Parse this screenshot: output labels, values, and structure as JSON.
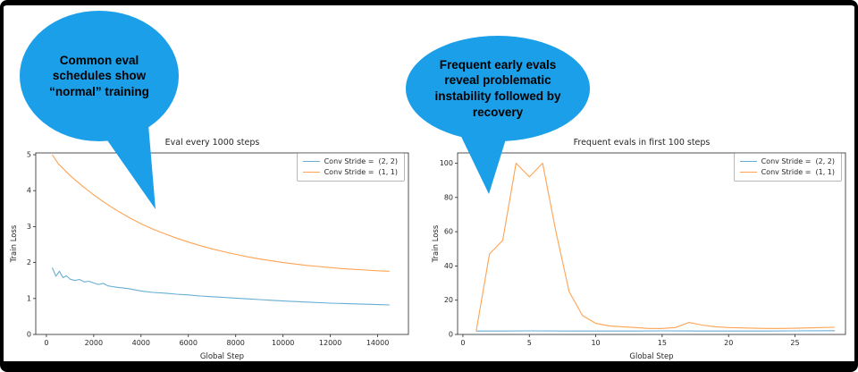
{
  "colors": {
    "bubble": "#1b9fe9",
    "series_blue": "#67aed5",
    "series_orange": "#ffa352"
  },
  "callouts": [
    {
      "text": "Common eval schedules show “normal” training"
    },
    {
      "text": "Frequent early evals reveal problematic instability followed by recovery"
    }
  ],
  "chart_data": [
    {
      "type": "line",
      "title": "Eval every 1000 steps",
      "xlabel": "Global Step",
      "ylabel": "Train Loss",
      "xlim": [
        -450,
        15300
      ],
      "ylim": [
        0,
        5.05
      ],
      "xticks": [
        0,
        2000,
        4000,
        6000,
        8000,
        10000,
        12000,
        14000
      ],
      "yticks": [
        0,
        1,
        2,
        3,
        4,
        5
      ],
      "grid": false,
      "legend_position": "upper right",
      "series": [
        {
          "name": "Conv Stride =  (2, 2)",
          "color": "#67aed5",
          "x": [
            250,
            400,
            550,
            700,
            850,
            1000,
            1200,
            1400,
            1600,
            1800,
            2000,
            2200,
            2400,
            2600,
            2800,
            3000,
            3250,
            3500,
            3750,
            4000,
            4500,
            5000,
            5500,
            6000,
            6500,
            7000,
            7500,
            8000,
            8500,
            9000,
            9500,
            10000,
            11000,
            12000,
            13000,
            14000,
            14500
          ],
          "y": [
            1.86,
            1.62,
            1.76,
            1.58,
            1.63,
            1.54,
            1.5,
            1.53,
            1.46,
            1.48,
            1.43,
            1.39,
            1.42,
            1.35,
            1.33,
            1.31,
            1.29,
            1.27,
            1.24,
            1.21,
            1.17,
            1.15,
            1.12,
            1.1,
            1.07,
            1.05,
            1.03,
            1.01,
            0.99,
            0.97,
            0.95,
            0.93,
            0.9,
            0.87,
            0.85,
            0.83,
            0.82
          ]
        },
        {
          "name": "Conv Stride =  (1, 1)",
          "color": "#ffa352",
          "x": [
            250,
            500,
            1000,
            1500,
            2000,
            2500,
            3000,
            3500,
            4000,
            4500,
            5000,
            5500,
            6000,
            6500,
            7000,
            7500,
            8000,
            8500,
            9000,
            9500,
            10000,
            10500,
            11000,
            11500,
            12000,
            12500,
            13000,
            13500,
            14000,
            14500
          ],
          "y": [
            5.0,
            4.75,
            4.42,
            4.14,
            3.88,
            3.65,
            3.44,
            3.25,
            3.08,
            2.93,
            2.8,
            2.68,
            2.57,
            2.47,
            2.38,
            2.3,
            2.23,
            2.16,
            2.1,
            2.05,
            2.0,
            1.96,
            1.92,
            1.89,
            1.86,
            1.83,
            1.81,
            1.79,
            1.77,
            1.76
          ]
        }
      ]
    },
    {
      "type": "line",
      "title": "Frequent evals in first 100 steps",
      "xlabel": "Global Step",
      "ylabel": "Train Loss",
      "xlim": [
        -0.4,
        28.8
      ],
      "ylim": [
        0,
        106
      ],
      "xticks": [
        0,
        5,
        10,
        15,
        20,
        25
      ],
      "yticks": [
        0,
        20,
        40,
        60,
        80,
        100
      ],
      "grid": false,
      "legend_position": "upper right",
      "series": [
        {
          "name": "Conv Stride =  (2, 2)",
          "color": "#67aed5",
          "x": [
            1,
            3,
            5,
            8,
            10,
            13,
            15,
            18,
            20,
            23,
            25,
            28
          ],
          "y": [
            2,
            2,
            2.1,
            2,
            2,
            2,
            2.1,
            2,
            2,
            2,
            2.1,
            2.2
          ]
        },
        {
          "name": "Conv Stride =  (1, 1)",
          "color": "#ffa352",
          "x": [
            1,
            2,
            3,
            4,
            5,
            6,
            7,
            8,
            9,
            10,
            11,
            12,
            13,
            14,
            15,
            16,
            17,
            18,
            19,
            20,
            21,
            22,
            23,
            24,
            25,
            26,
            27,
            28
          ],
          "y": [
            2,
            47,
            55,
            100,
            92,
            100,
            60,
            25,
            11,
            6.5,
            5,
            4.5,
            4,
            3.5,
            3.5,
            4,
            7,
            5.5,
            4.5,
            4,
            3.8,
            3.6,
            3.5,
            3.5,
            3.6,
            3.8,
            4,
            4.2
          ]
        }
      ]
    }
  ]
}
